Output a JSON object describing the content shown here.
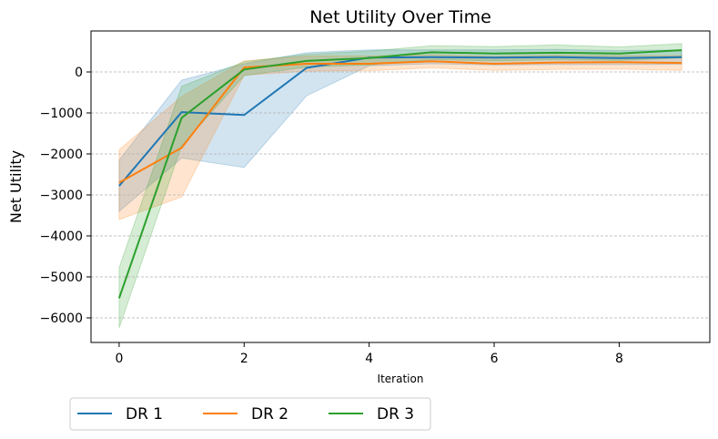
{
  "chart_data": {
    "type": "line",
    "title": "Net Utility Over Time",
    "xlabel": "Iteration",
    "ylabel": "Net Utility",
    "xlim": [
      -0.45,
      9.45
    ],
    "ylim": [
      -6600,
      1000
    ],
    "xticks": [
      0,
      2,
      4,
      6,
      8
    ],
    "yticks": [
      0,
      -1000,
      -2000,
      -3000,
      -4000,
      -5000,
      -6000
    ],
    "ytick_labels": [
      "0",
      "−1000",
      "−2000",
      "−3000",
      "−4000",
      "−5000",
      "−6000"
    ],
    "grid": "horizontal dashed",
    "legend_placement": "bottom-left, below plot",
    "x": [
      0,
      1,
      2,
      3,
      4,
      5,
      6,
      7,
      8,
      9
    ],
    "series": [
      {
        "name": "DR 1",
        "color": "#1f77b4",
        "values": [
          -2780,
          -980,
          -1050,
          100,
          350,
          360,
          350,
          360,
          340,
          360
        ],
        "lower": [
          -3400,
          -2100,
          -2330,
          -580,
          150,
          200,
          170,
          180,
          180,
          190
        ],
        "upper": [
          -2150,
          -200,
          200,
          470,
          540,
          540,
          540,
          550,
          520,
          540
        ]
      },
      {
        "name": "DR 2",
        "color": "#ff7f0e",
        "values": [
          -2700,
          -1850,
          110,
          200,
          200,
          260,
          200,
          230,
          240,
          220
        ],
        "lower": [
          -3600,
          -3050,
          -80,
          20,
          30,
          100,
          40,
          60,
          70,
          40
        ],
        "upper": [
          -1900,
          -600,
          270,
          390,
          390,
          420,
          380,
          410,
          400,
          400
        ]
      },
      {
        "name": "DR 3",
        "color": "#2ca02c",
        "values": [
          -5520,
          -1120,
          60,
          270,
          340,
          480,
          450,
          470,
          450,
          530
        ],
        "lower": [
          -6250,
          -1800,
          -90,
          120,
          170,
          300,
          270,
          300,
          280,
          340
        ],
        "upper": [
          -4780,
          -350,
          250,
          430,
          510,
          640,
          620,
          660,
          610,
          690
        ]
      }
    ]
  }
}
